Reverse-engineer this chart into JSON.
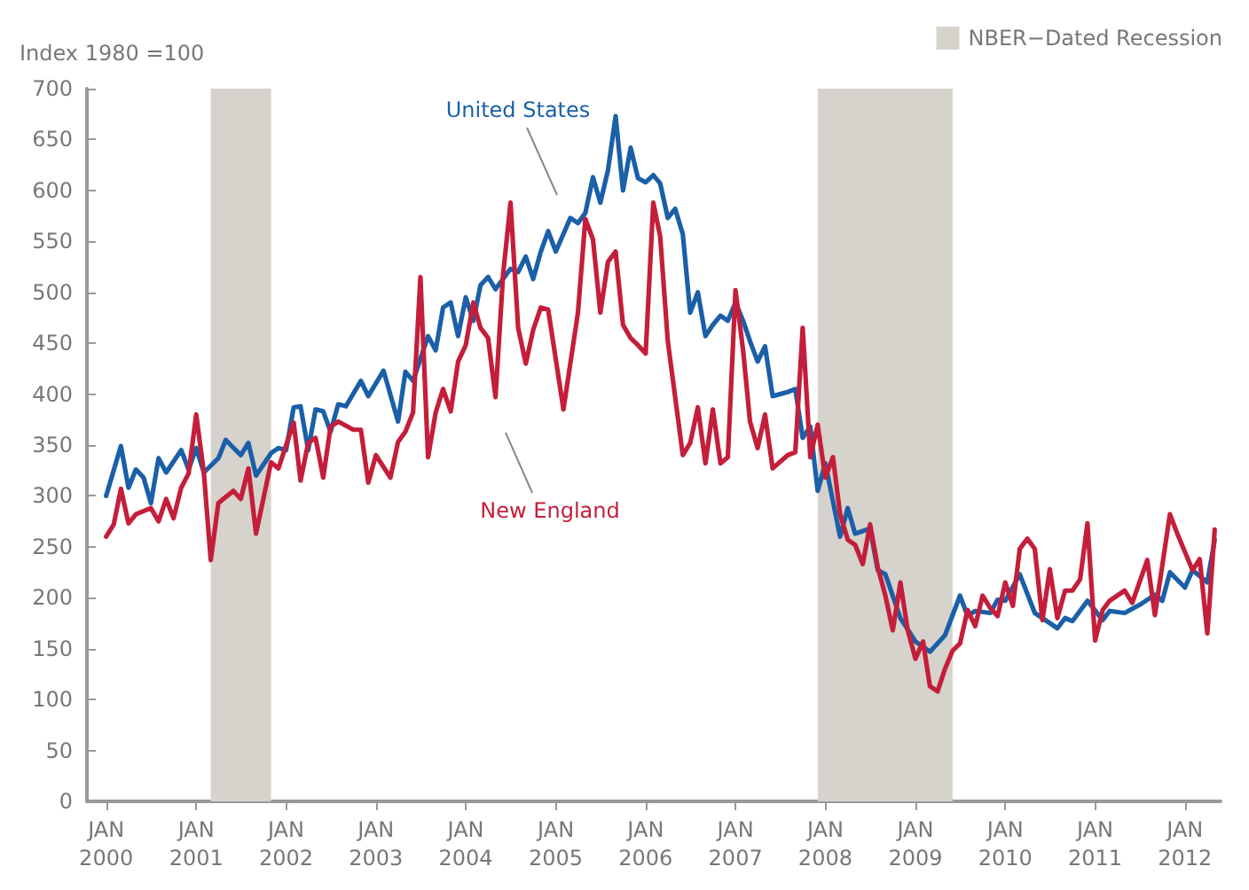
{
  "chart_data": {
    "type": "line",
    "ylabel": "Index 1980 =100",
    "xlim": [
      "1999-10-15",
      "2012-05-25"
    ],
    "ylim": [
      0,
      700
    ],
    "yticks": [
      0,
      50,
      100,
      150,
      200,
      250,
      300,
      350,
      400,
      450,
      500,
      550,
      600,
      650,
      700
    ],
    "xticks": [
      {
        "value": "2000-01-01",
        "label": "JAN\n2000"
      },
      {
        "value": "2001-01-01",
        "label": "JAN\n2001"
      },
      {
        "value": "2002-01-01",
        "label": "JAN\n2002"
      },
      {
        "value": "2003-01-01",
        "label": "JAN\n2003"
      },
      {
        "value": "2004-01-01",
        "label": "JAN\n2004"
      },
      {
        "value": "2005-01-01",
        "label": "JAN\n2005"
      },
      {
        "value": "2006-01-01",
        "label": "JAN\n2006"
      },
      {
        "value": "2007-01-01",
        "label": "JAN\n2007"
      },
      {
        "value": "2008-01-01",
        "label": "JAN\n2008"
      },
      {
        "value": "2009-01-01",
        "label": "JAN\n2009"
      },
      {
        "value": "2010-01-01",
        "label": "JAN\n2010"
      },
      {
        "value": "2011-01-01",
        "label": "JAN\n2011"
      },
      {
        "value": "2012-01-01",
        "label": "JAN\n2012"
      }
    ],
    "grid": false,
    "legend": "top right",
    "marker": "none",
    "line_style": "solid",
    "series": [
      {
        "name": "United States",
        "color": "#1a5fa8",
        "x": [
          "2000-01",
          "2000-03",
          "2000-04",
          "2000-05",
          "2000-06",
          "2000-07",
          "2000-08",
          "2000-09",
          "2000-11",
          "2000-12",
          "2001-01",
          "2001-02",
          "2001-04",
          "2001-05",
          "2001-07",
          "2001-08",
          "2001-09",
          "2001-11",
          "2001-12",
          "2002-01",
          "2002-02",
          "2002-03",
          "2002-04",
          "2002-05",
          "2002-06",
          "2002-07",
          "2002-08",
          "2002-09",
          "2002-11",
          "2002-12",
          "2003-02",
          "2003-04",
          "2003-05",
          "2003-06",
          "2003-08",
          "2003-09",
          "2003-10",
          "2003-11",
          "2003-12",
          "2004-01",
          "2004-02",
          "2004-03",
          "2004-04",
          "2004-05",
          "2004-07",
          "2004-08",
          "2004-09",
          "2004-10",
          "2004-11",
          "2004-12",
          "2005-01",
          "2005-03",
          "2005-04",
          "2005-05",
          "2005-06",
          "2005-07",
          "2005-08",
          "2005-09",
          "2005-10",
          "2005-11",
          "2005-12",
          "2006-01",
          "2006-02",
          "2006-03",
          "2006-04",
          "2006-05",
          "2006-06",
          "2006-07",
          "2006-08",
          "2006-09",
          "2006-10",
          "2006-11",
          "2006-12",
          "2007-01",
          "2007-02",
          "2007-03",
          "2007-04",
          "2007-05",
          "2007-06",
          "2007-08",
          "2007-09",
          "2007-10",
          "2007-11",
          "2007-12",
          "2008-01",
          "2008-03",
          "2008-04",
          "2008-05",
          "2008-07",
          "2008-08",
          "2008-09",
          "2008-11",
          "2009-01",
          "2009-03",
          "2009-05",
          "2009-07",
          "2009-08",
          "2009-09",
          "2009-11",
          "2009-12",
          "2010-01",
          "2010-03",
          "2010-05",
          "2010-08",
          "2010-09",
          "2010-10",
          "2010-12",
          "2011-02",
          "2011-03",
          "2011-05",
          "2011-07",
          "2011-09",
          "2011-10",
          "2011-11",
          "2012-01",
          "2012-02",
          "2012-04",
          "2012-05"
        ],
        "values": [
          300,
          349,
          308,
          326,
          318,
          293,
          337,
          323,
          345,
          326,
          347,
          323,
          337,
          355,
          340,
          352,
          320,
          342,
          347,
          345,
          387,
          388,
          345,
          385,
          383,
          363,
          390,
          388,
          413,
          398,
          423,
          373,
          422,
          413,
          457,
          443,
          485,
          490,
          457,
          495,
          472,
          507,
          515,
          503,
          523,
          520,
          535,
          513,
          540,
          560,
          540,
          573,
          568,
          578,
          613,
          588,
          620,
          673,
          600,
          642,
          612,
          608,
          615,
          607,
          573,
          582,
          557,
          480,
          500,
          457,
          468,
          477,
          472,
          490,
          472,
          452,
          432,
          447,
          398,
          402,
          405,
          357,
          368,
          305,
          332,
          260,
          288,
          263,
          268,
          227,
          223,
          180,
          157,
          147,
          163,
          202,
          182,
          187,
          185,
          198,
          197,
          223,
          185,
          170,
          180,
          177,
          197,
          178,
          187,
          185,
          193,
          203,
          197,
          225,
          210,
          227,
          215,
          257
        ]
      },
      {
        "name": "New England",
        "color": "#c41e3a",
        "x": [
          "2000-01",
          "2000-02",
          "2000-03",
          "2000-04",
          "2000-05",
          "2000-07",
          "2000-08",
          "2000-09",
          "2000-10",
          "2000-11",
          "2000-12",
          "2001-01",
          "2001-02",
          "2001-03",
          "2001-04",
          "2001-06",
          "2001-07",
          "2001-08",
          "2001-09",
          "2001-11",
          "2001-12",
          "2002-02",
          "2002-03",
          "2002-04",
          "2002-05",
          "2002-06",
          "2002-07",
          "2002-08",
          "2002-10",
          "2002-11",
          "2002-12",
          "2003-01",
          "2003-03",
          "2003-04",
          "2003-05",
          "2003-06",
          "2003-07",
          "2003-08",
          "2003-09",
          "2003-10",
          "2003-11",
          "2003-12",
          "2004-01",
          "2004-02",
          "2004-03",
          "2004-04",
          "2004-05",
          "2004-06",
          "2004-07",
          "2004-08",
          "2004-09",
          "2004-10",
          "2004-11",
          "2004-12",
          "2005-02",
          "2005-04",
          "2005-05",
          "2005-06",
          "2005-07",
          "2005-08",
          "2005-09",
          "2005-10",
          "2005-11",
          "2005-12",
          "2006-01",
          "2006-02",
          "2006-03",
          "2006-04",
          "2006-06",
          "2006-07",
          "2006-08",
          "2006-09",
          "2006-10",
          "2006-11",
          "2006-12",
          "2007-01",
          "2007-02",
          "2007-03",
          "2007-04",
          "2007-05",
          "2007-06",
          "2007-08",
          "2007-09",
          "2007-10",
          "2007-11",
          "2007-12",
          "2008-01",
          "2008-02",
          "2008-03",
          "2008-04",
          "2008-05",
          "2008-06",
          "2008-07",
          "2008-08",
          "2008-09",
          "2008-10",
          "2008-11",
          "2008-12",
          "2009-01",
          "2009-02",
          "2009-03",
          "2009-04",
          "2009-05",
          "2009-06",
          "2009-07",
          "2009-08",
          "2009-09",
          "2009-10",
          "2009-11",
          "2009-12",
          "2010-01",
          "2010-02",
          "2010-03",
          "2010-04",
          "2010-05",
          "2010-06",
          "2010-07",
          "2010-08",
          "2010-09",
          "2010-10",
          "2010-11",
          "2010-12",
          "2011-01",
          "2011-02",
          "2011-03",
          "2011-05",
          "2011-06",
          "2011-08",
          "2011-09",
          "2011-11",
          "2011-12",
          "2012-02",
          "2012-03",
          "2012-04",
          "2012-05"
        ],
        "values": [
          260,
          272,
          307,
          273,
          282,
          288,
          275,
          297,
          278,
          308,
          322,
          380,
          323,
          237,
          293,
          305,
          297,
          327,
          263,
          333,
          327,
          372,
          315,
          352,
          357,
          318,
          368,
          373,
          365,
          365,
          313,
          340,
          318,
          353,
          363,
          382,
          515,
          338,
          382,
          405,
          383,
          432,
          448,
          490,
          465,
          455,
          397,
          518,
          588,
          465,
          430,
          463,
          485,
          483,
          385,
          480,
          572,
          552,
          480,
          530,
          540,
          468,
          455,
          448,
          440,
          588,
          555,
          452,
          340,
          352,
          387,
          332,
          385,
          332,
          338,
          502,
          443,
          373,
          347,
          380,
          327,
          340,
          343,
          465,
          338,
          370,
          318,
          338,
          282,
          257,
          252,
          233,
          272,
          230,
          202,
          168,
          215,
          168,
          140,
          157,
          113,
          108,
          130,
          148,
          155,
          188,
          172,
          202,
          190,
          182,
          215,
          192,
          248,
          258,
          248,
          178,
          228,
          180,
          207,
          207,
          218,
          273,
          158,
          188,
          197,
          207,
          195,
          237,
          183,
          282,
          263,
          227,
          238,
          165,
          267
        ]
      }
    ],
    "bands": [
      {
        "axis": "x",
        "from": "2001-03",
        "to": "2001-11",
        "label": "NBER−Dated Recession",
        "color": "#d6d3cc"
      },
      {
        "axis": "x",
        "from": "2007-12",
        "to": "2009-06",
        "color": "#d6d3cc"
      }
    ]
  }
}
